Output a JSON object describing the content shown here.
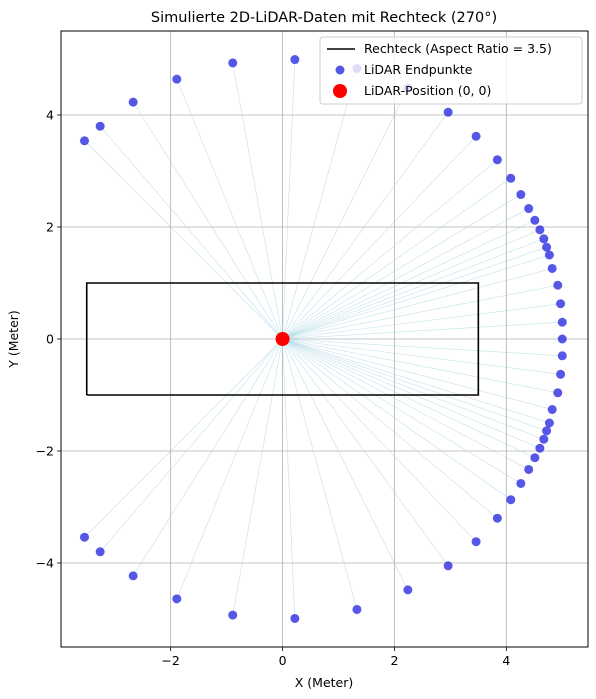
{
  "chart_data": {
    "type": "scatter",
    "title": "Simulierte 2D-LiDAR-Daten mit Rechteck (270°)",
    "xlabel": "X (Meter)",
    "ylabel": "Y (Meter)",
    "xlim": [
      -3.96,
      5.46
    ],
    "ylim": [
      -5.5,
      5.5
    ],
    "xticks": [
      -2,
      0,
      2,
      4
    ],
    "yticks": [
      -4,
      -2,
      0,
      2,
      4
    ],
    "xtick_labels": [
      "−2",
      "0",
      "2",
      "4"
    ],
    "ytick_labels": [
      "−4",
      "−2",
      "0",
      "2",
      "4"
    ],
    "grid": true,
    "legend_position": "top-right",
    "colors": {
      "rectangle": "#000000",
      "points": "#1f1fdf",
      "beams": "#a8d4e3",
      "lidar": "#ff0000",
      "grid": "#b0b0b0"
    },
    "series": [
      {
        "name": "Rechteck (Aspect Ratio = 3.5)",
        "type": "line",
        "x": [
          -3.5,
          3.5,
          3.5,
          -3.5,
          -3.5
        ],
        "y": [
          -1,
          -1,
          1,
          1,
          -1
        ]
      },
      {
        "name": "LiDAR Endpunkte",
        "type": "scatter",
        "x": [
          -3.54,
          -3.26,
          -2.67,
          -1.89,
          -0.89,
          0.22,
          1.33,
          2.24,
          2.96,
          3.46,
          3.84,
          4.08,
          4.26,
          4.4,
          4.51,
          4.6,
          4.67,
          4.72,
          4.77,
          4.82,
          4.92,
          4.97,
          5.0,
          5.0,
          5.0,
          4.97,
          4.92,
          4.82,
          4.77,
          4.72,
          4.67,
          4.6,
          4.51,
          4.4,
          4.26,
          4.08,
          3.84,
          3.46,
          2.96,
          2.24,
          1.33,
          0.22,
          -0.89,
          -1.89,
          -2.67,
          -3.26,
          -3.54
        ],
        "y": [
          3.54,
          3.8,
          4.23,
          4.64,
          4.93,
          4.99,
          4.83,
          4.48,
          4.05,
          3.62,
          3.2,
          2.87,
          2.58,
          2.33,
          2.12,
          1.95,
          1.79,
          1.64,
          1.5,
          1.26,
          0.96,
          0.63,
          0.3,
          0.0,
          -0.3,
          -0.63,
          -0.96,
          -1.26,
          -1.5,
          -1.64,
          -1.79,
          -1.95,
          -2.12,
          -2.33,
          -2.58,
          -2.87,
          -3.2,
          -3.62,
          -4.05,
          -4.48,
          -4.83,
          -4.99,
          -4.93,
          -4.64,
          -4.23,
          -3.8,
          -3.54
        ]
      },
      {
        "name": "LiDAR-Position (0, 0)",
        "type": "scatter",
        "x": [
          0
        ],
        "y": [
          0
        ]
      }
    ]
  }
}
